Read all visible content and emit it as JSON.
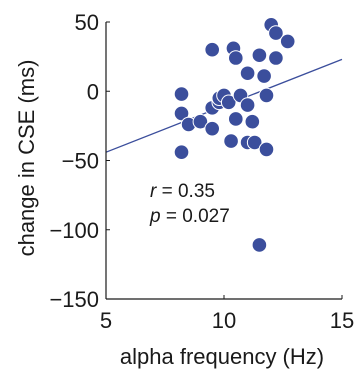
{
  "chart_data": {
    "type": "scatter",
    "xlabel": "alpha frequency (Hz)",
    "ylabel": "change in CSE (ms)",
    "xlim": [
      5,
      15
    ],
    "ylim": [
      -150,
      50
    ],
    "xticks": [
      5,
      10,
      15
    ],
    "yticks": [
      -150,
      -100,
      -50,
      0,
      50
    ],
    "xtick_labels": [
      "5",
      "10",
      "15"
    ],
    "ytick_labels": [
      "−150",
      "−100",
      "−50",
      "0",
      "50"
    ],
    "grid": false,
    "series": [
      {
        "points": [
          [
            8.2,
            -2
          ],
          [
            8.2,
            -16
          ],
          [
            8.5,
            -24
          ],
          [
            8.2,
            -44
          ],
          [
            9.0,
            -22
          ],
          [
            9.5,
            30
          ],
          [
            9.5,
            -12
          ],
          [
            9.8,
            -8
          ],
          [
            9.8,
            -5
          ],
          [
            9.5,
            -27
          ],
          [
            10.0,
            -3
          ],
          [
            10.2,
            -8
          ],
          [
            10.4,
            31
          ],
          [
            10.5,
            24
          ],
          [
            10.3,
            -36
          ],
          [
            10.5,
            -20
          ],
          [
            10.7,
            -3
          ],
          [
            11.0,
            13
          ],
          [
            11.0,
            -10
          ],
          [
            11.2,
            -22
          ],
          [
            11.0,
            -37
          ],
          [
            11.3,
            -37
          ],
          [
            11.5,
            26
          ],
          [
            11.7,
            11
          ],
          [
            11.8,
            -3
          ],
          [
            11.8,
            -42
          ],
          [
            12.0,
            48
          ],
          [
            12.2,
            42
          ],
          [
            12.2,
            24
          ],
          [
            12.7,
            36
          ],
          [
            11.5,
            -111
          ]
        ]
      }
    ],
    "trend_line": {
      "x": [
        5,
        15
      ],
      "y": [
        -44,
        23
      ]
    },
    "stats": [
      {
        "symbol": "r",
        "text": " = 0.35"
      },
      {
        "symbol": "p",
        "text": " = 0.027"
      }
    ],
    "colors": {
      "marker": "#3b4e9c",
      "line": "#3b4e9c",
      "axis": "#1a1a1a"
    }
  }
}
